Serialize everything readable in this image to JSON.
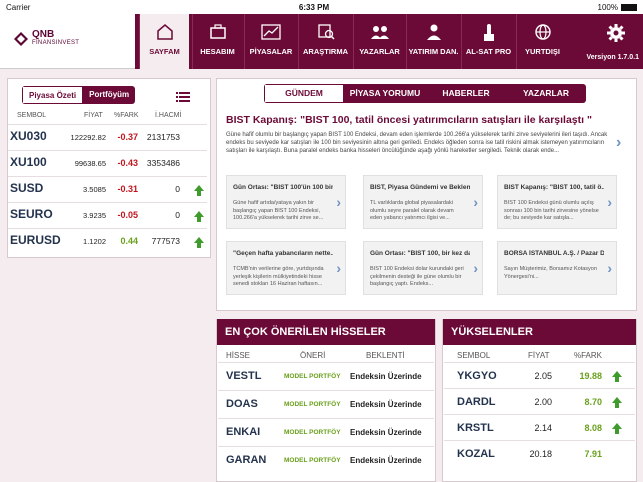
{
  "status": {
    "carrier": "Carrier",
    "time": "6:33 PM",
    "battery": "100%"
  },
  "brand": {
    "line1": "QNB",
    "line2": "FİNANSINVEST"
  },
  "nav": [
    {
      "label": "SAYFAM",
      "icon": "home-icon"
    },
    {
      "label": "HESABIM",
      "icon": "briefcase-icon"
    },
    {
      "label": "PİYASALAR",
      "icon": "chart-icon"
    },
    {
      "label": "ARAŞTIRMA",
      "icon": "research-icon"
    },
    {
      "label": "YAZARLAR",
      "icon": "writers-icon"
    },
    {
      "label": "YATIRIM DAN.",
      "icon": "advisor-icon"
    },
    {
      "label": "AL-SAT PRO",
      "icon": "touch-icon"
    },
    {
      "label": "YURTDIŞI",
      "icon": "globe-icon"
    }
  ],
  "version": "Versiyon 1.7.0.1",
  "market": {
    "tabs": [
      "Piyasa Özeti",
      "Portföyüm"
    ],
    "headers": [
      "SEMBOL",
      "FİYAT",
      "%FARK",
      "İ.HACMİ"
    ],
    "rows": [
      {
        "symbol": "XU030",
        "price": "122292.82",
        "change": "-0.37",
        "volume": "2131753",
        "dir": "neg",
        "arrow": false
      },
      {
        "symbol": "XU100",
        "price": "99638.65",
        "change": "-0.43",
        "volume": "3353486",
        "dir": "neg",
        "arrow": false
      },
      {
        "symbol": "SUSD",
        "price": "3.5085",
        "change": "-0.31",
        "volume": "0",
        "dir": "neg",
        "arrow": true
      },
      {
        "symbol": "SEURO",
        "price": "3.9235",
        "change": "-0.05",
        "volume": "0",
        "dir": "neg",
        "arrow": true
      },
      {
        "symbol": "EURUSD",
        "price": "1.1202",
        "change": "0.44",
        "volume": "777573",
        "dir": "pos",
        "arrow": true
      }
    ]
  },
  "news": {
    "tabs": [
      "GÜNDEM",
      "PİYASA YORUMU",
      "HABERLER",
      "YAZARLAR"
    ],
    "headline": "BIST Kapanış: \"BIST 100, tatil öncesi yatırımcıların satışları ile karşılaştı \"",
    "body": "Güne hafif olumlu bir başlangıç yapan BIST 100 Endeksi, devam eden işlemlerde 100.266'a yükselerek tarihi zirve seviyelerini ileri taşıdı. Ancak endeks bu seviyede kar satışları ile 100 bin seviyesinin altına geri geriledi. Endeks öğleden sonra ise tatil riskini almak istemeyen yatırımcıların satışları ile karşılaştı. Buna paralel endeks banka hisseleri öncülüğünde aşağı yönlü hareketler sergiledi. Teknik olarak ende...",
    "cards": [
      {
        "title": "Gün Ortası: \"BIST 100'ün 100 bin...",
        "body": "Güne hafif artıda/yataya yakın bir başlangıç yapan BIST 100 Endeksi, 100.266'a yükselerek tarihi zirve se..."
      },
      {
        "title": "BIST, Piyasa Gündemi ve Beklen...",
        "body": "TL varlıklarda global piyasalardaki olumlu seyre paralel olarak devam eden yabancı yatırımcı ilgisi ve..."
      },
      {
        "title": "BIST Kapanış: \"BIST 100, tatil ö...",
        "body": "BIST 100 Endeksi günü olumlu açılış sonrası 100 bin tarihi zirvesine yönelse de; bu seviyede kar satışla..."
      },
      {
        "title": "\"Geçen hafta yabancıların nette...",
        "body": "TCMB'nin verilerine göre, yurtdışında yerleşik kişilerin mülkiyetindeki hisse senedi stokları 16 Haziran haftasın..."
      },
      {
        "title": "Gün Ortası: \"BIST 100, bir kez da...",
        "body": "BIST 100 Endeksi dolar kurundaki geri çekilmenin desteği ile güne olumlu bir başlangıç yaptı. Endeks..."
      },
      {
        "title": "BORSA İSTANBUL A.Ş. / Pazar D...",
        "body": "Sayın Müşterimiz,\n\nBorsamız Kotasyon Yönergesi'ni..."
      }
    ]
  },
  "recommended": {
    "title": "EN ÇOK ÖNERİLEN HİSSELER",
    "headers": [
      "HİSSE",
      "ÖNERİ",
      "BEKLENTİ"
    ],
    "rows": [
      {
        "symbol": "VESTL",
        "rec": "MODEL PORTFÖY",
        "exp": "Endeksin Üzerinde"
      },
      {
        "symbol": "DOAS",
        "rec": "MODEL PORTFÖY",
        "exp": "Endeksin Üzerinde"
      },
      {
        "symbol": "ENKAI",
        "rec": "MODEL PORTFÖY",
        "exp": "Endeksin Üzerinde"
      },
      {
        "symbol": "GARAN",
        "rec": "MODEL PORTFÖY",
        "exp": "Endeksin Üzerinde"
      }
    ]
  },
  "risers": {
    "title": "YÜKSELENLER",
    "headers": [
      "SEMBOL",
      "FİYAT",
      "%FARK"
    ],
    "rows": [
      {
        "symbol": "YKGYO",
        "price": "2.05",
        "change": "19.88",
        "arrow": true
      },
      {
        "symbol": "DARDL",
        "price": "2.00",
        "change": "8.70",
        "arrow": true
      },
      {
        "symbol": "KRSTL",
        "price": "2.14",
        "change": "8.08",
        "arrow": true
      },
      {
        "symbol": "KOZAL",
        "price": "20.18",
        "change": "7.91",
        "arrow": false
      }
    ]
  }
}
